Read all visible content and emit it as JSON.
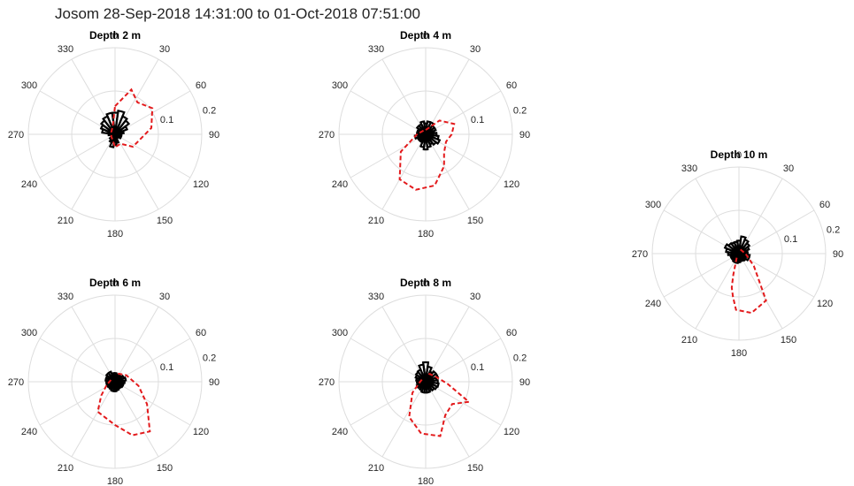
{
  "figure": {
    "title": "Josom 28-Sep-2018 14:31:00 to 01-Oct-2018 07:51:00"
  },
  "colors": {
    "rose": "#000000",
    "dashed": "#e31a1c",
    "grid": "#dddddd"
  },
  "chart_data": [
    {
      "type": "polar-rose",
      "title": "Depth 2 m",
      "theta_ticks": [
        0,
        30,
        60,
        90,
        120,
        150,
        180,
        210,
        240,
        270,
        300,
        330
      ],
      "r_ticks": [
        0.1,
        0.2
      ],
      "rmax": 0.2,
      "bin_deg": 15,
      "rose_values": [
        0.05,
        0.055,
        0.045,
        0.04,
        0.03,
        0.02,
        0.015,
        0.01,
        0.015,
        0.01,
        0.01,
        0.02,
        0.025,
        0.03,
        0.02,
        0.015,
        0.01,
        0.01,
        0.015,
        0.03,
        0.035,
        0.04,
        0.045,
        0.05
      ],
      "dashed_curve": [
        [
          0,
          0.065
        ],
        [
          20,
          0.11
        ],
        [
          35,
          0.09
        ],
        [
          55,
          0.105
        ],
        [
          80,
          0.085
        ],
        [
          100,
          0.06
        ],
        [
          125,
          0.05
        ],
        [
          150,
          0.025
        ],
        [
          180,
          0.03
        ],
        [
          200,
          0.015
        ],
        [
          240,
          0.01
        ],
        [
          300,
          0.01
        ],
        [
          345,
          0.02
        ],
        [
          360,
          0.065
        ]
      ]
    },
    {
      "type": "polar-rose",
      "title": "Depth 4 m",
      "theta_ticks": [
        0,
        30,
        60,
        90,
        120,
        150,
        180,
        210,
        240,
        270,
        300,
        330
      ],
      "r_ticks": [
        0.1,
        0.2
      ],
      "rmax": 0.2,
      "bin_deg": 15,
      "rose_values": [
        0.025,
        0.03,
        0.03,
        0.025,
        0.025,
        0.02,
        0.025,
        0.03,
        0.035,
        0.03,
        0.025,
        0.03,
        0.035,
        0.03,
        0.02,
        0.02,
        0.02,
        0.025,
        0.02,
        0.02,
        0.02,
        0.025,
        0.025,
        0.03
      ],
      "dashed_curve": [
        [
          0,
          0.01
        ],
        [
          45,
          0.045
        ],
        [
          70,
          0.07
        ],
        [
          90,
          0.06
        ],
        [
          110,
          0.05
        ],
        [
          135,
          0.06
        ],
        [
          150,
          0.085
        ],
        [
          170,
          0.12
        ],
        [
          190,
          0.13
        ],
        [
          210,
          0.12
        ],
        [
          235,
          0.07
        ],
        [
          270,
          0.02
        ],
        [
          330,
          0.01
        ],
        [
          360,
          0.01
        ]
      ]
    },
    {
      "type": "polar-rose",
      "title": "Depth 6 m",
      "theta_ticks": [
        0,
        30,
        60,
        90,
        120,
        150,
        180,
        210,
        240,
        270,
        300,
        330
      ],
      "r_ticks": [
        0.1,
        0.2
      ],
      "rmax": 0.2,
      "bin_deg": 15,
      "rose_values": [
        0.02,
        0.018,
        0.015,
        0.018,
        0.022,
        0.025,
        0.022,
        0.02,
        0.02,
        0.018,
        0.018,
        0.02,
        0.022,
        0.022,
        0.02,
        0.018,
        0.02,
        0.02,
        0.02,
        0.022,
        0.022,
        0.025,
        0.025,
        0.02
      ],
      "dashed_curve": [
        [
          20,
          0.02
        ],
        [
          60,
          0.03
        ],
        [
          100,
          0.055
        ],
        [
          125,
          0.09
        ],
        [
          145,
          0.14
        ],
        [
          162,
          0.13
        ],
        [
          180,
          0.1
        ],
        [
          210,
          0.08
        ],
        [
          225,
          0.045
        ],
        [
          250,
          0.02
        ],
        [
          300,
          0.01
        ]
      ]
    },
    {
      "type": "polar-rose",
      "title": "Depth 8 m",
      "theta_ticks": [
        0,
        30,
        60,
        90,
        120,
        150,
        180,
        210,
        240,
        270,
        300,
        330
      ],
      "r_ticks": [
        0.1,
        0.2
      ],
      "rmax": 0.2,
      "bin_deg": 15,
      "rose_values": [
        0.045,
        0.035,
        0.025,
        0.03,
        0.03,
        0.025,
        0.028,
        0.03,
        0.028,
        0.025,
        0.022,
        0.025,
        0.025,
        0.025,
        0.022,
        0.02,
        0.022,
        0.02,
        0.02,
        0.022,
        0.025,
        0.028,
        0.03,
        0.04
      ],
      "dashed_curve": [
        [
          20,
          0.02
        ],
        [
          60,
          0.025
        ],
        [
          95,
          0.05
        ],
        [
          115,
          0.11
        ],
        [
          130,
          0.08
        ],
        [
          150,
          0.09
        ],
        [
          165,
          0.13
        ],
        [
          185,
          0.12
        ],
        [
          205,
          0.09
        ],
        [
          230,
          0.04
        ],
        [
          260,
          0.015
        ],
        [
          320,
          0.01
        ]
      ]
    },
    {
      "type": "polar-rose",
      "title": "Depth 10 m",
      "theta_ticks": [
        0,
        30,
        60,
        90,
        120,
        150,
        180,
        210,
        240,
        270,
        300,
        330
      ],
      "r_ticks": [
        0.1,
        0.2
      ],
      "rmax": 0.2,
      "bin_deg": 15,
      "rose_values": [
        0.03,
        0.04,
        0.035,
        0.03,
        0.025,
        0.02,
        0.02,
        0.025,
        0.025,
        0.02,
        0.018,
        0.018,
        0.02,
        0.022,
        0.022,
        0.02,
        0.02,
        0.02,
        0.025,
        0.03,
        0.035,
        0.03,
        0.028,
        0.028
      ],
      "dashed_curve": [
        [
          20,
          0.01
        ],
        [
          90,
          0.015
        ],
        [
          130,
          0.045
        ],
        [
          150,
          0.125
        ],
        [
          168,
          0.14
        ],
        [
          183,
          0.13
        ],
        [
          188,
          0.1
        ],
        [
          192,
          0.08
        ],
        [
          195,
          0.05
        ],
        [
          210,
          0.01
        ]
      ]
    }
  ]
}
